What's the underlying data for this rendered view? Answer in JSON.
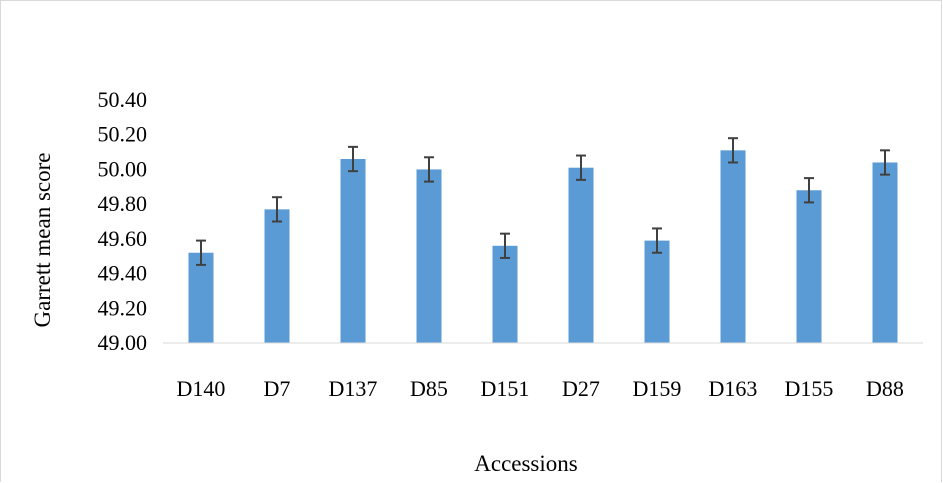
{
  "chart_data": {
    "type": "bar",
    "title": "",
    "xlabel": "Accessions",
    "ylabel": "Garrett mean score",
    "ylim": [
      49.0,
      50.4
    ],
    "yticks": [
      "49.00",
      "49.20",
      "49.40",
      "49.60",
      "49.80",
      "50.00",
      "50.20",
      "50.40"
    ],
    "categories": [
      "D140",
      "D7",
      "D137",
      "D85",
      "D151",
      "D27",
      "D159",
      "D163",
      "D155",
      "D88"
    ],
    "values": [
      49.52,
      49.77,
      50.06,
      50.0,
      49.56,
      50.01,
      49.59,
      50.11,
      49.88,
      50.04
    ],
    "error": [
      0.07,
      0.07,
      0.07,
      0.07,
      0.07,
      0.07,
      0.07,
      0.07,
      0.07,
      0.07
    ],
    "grid": false,
    "legend": "none",
    "bar_color": "#5b9bd5",
    "error_color": "#404040"
  }
}
